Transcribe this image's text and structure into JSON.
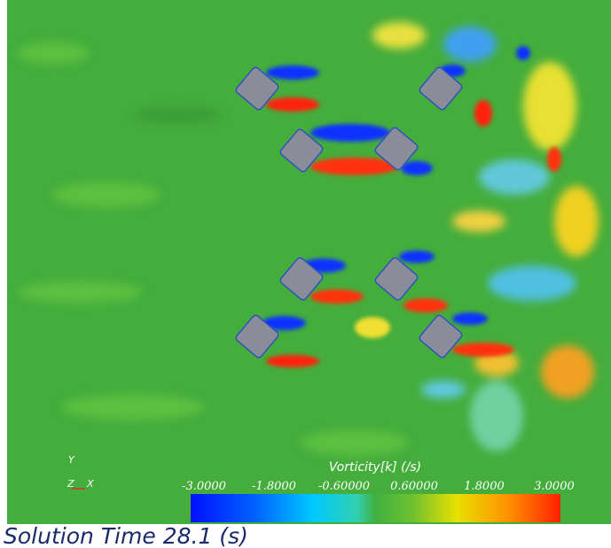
{
  "axes_triad": {
    "y": "Y",
    "z": "Z",
    "x": "X"
  },
  "colorbar": {
    "title": "Vorticity[k] (/s)",
    "range": [
      -3,
      3
    ],
    "ticks": [
      {
        "value": -3,
        "label": "-3.0000"
      },
      {
        "value": -1.8,
        "label": "-1.8000"
      },
      {
        "value": -0.6,
        "label": "-0.60000"
      },
      {
        "value": 0.6,
        "label": "0.60000"
      },
      {
        "value": 1.8,
        "label": "1.8000"
      },
      {
        "value": 3,
        "label": "3.0000"
      }
    ]
  },
  "solution_time": "Solution Time 28.1 (s)"
}
